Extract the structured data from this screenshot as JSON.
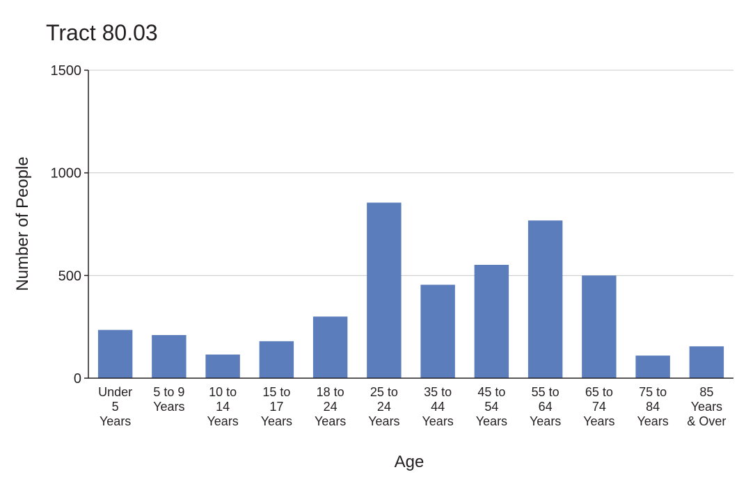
{
  "chart_data": {
    "type": "bar",
    "title": "Tract 80.03",
    "xlabel": "Age",
    "ylabel": "Number of People",
    "ylim": [
      0,
      1500
    ],
    "yticks": [
      0,
      500,
      1000,
      1500
    ],
    "grid": true,
    "legend": "none",
    "bar_color": "#5b7dbc",
    "categories": [
      [
        "Under",
        "5",
        "Years"
      ],
      [
        "5 to 9",
        "Years"
      ],
      [
        "10 to",
        "14",
        "Years"
      ],
      [
        "15 to",
        "17",
        "Years"
      ],
      [
        "18 to",
        "24",
        "Years"
      ],
      [
        "25 to",
        "24",
        "Years"
      ],
      [
        "35 to",
        "44",
        "Years"
      ],
      [
        "45 to",
        "54",
        "Years"
      ],
      [
        "55 to",
        "64",
        "Years"
      ],
      [
        "65 to",
        "74",
        "Years"
      ],
      [
        "75 to",
        "84",
        "Years"
      ],
      [
        "85",
        "Years",
        "& Over"
      ]
    ],
    "values": [
      235,
      210,
      115,
      180,
      300,
      855,
      455,
      552,
      768,
      500,
      110,
      155
    ]
  }
}
